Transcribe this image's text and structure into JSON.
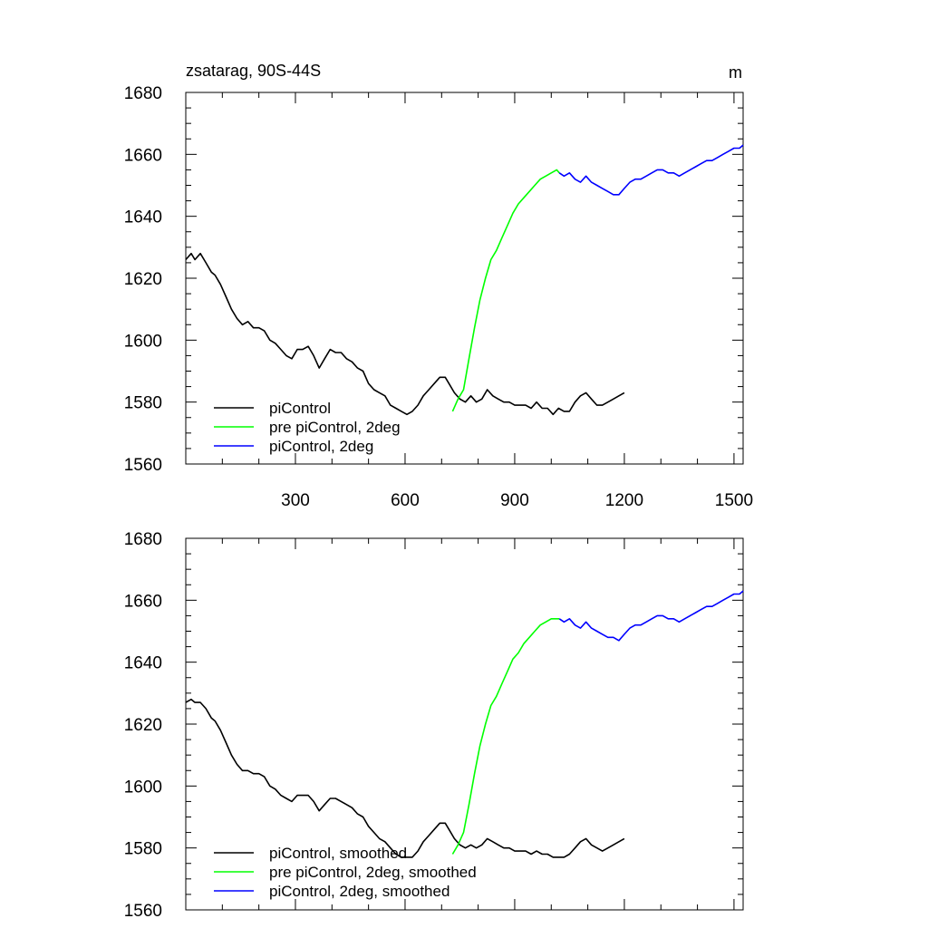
{
  "colors": {
    "black": "#000000",
    "green": "#00ff00",
    "blue": "#0000ff"
  },
  "chart_data": [
    {
      "type": "line",
      "title": "zsatarag, 90S-44S",
      "units": "m",
      "xlim": [
        0,
        1525
      ],
      "ylim": [
        1560,
        1680
      ],
      "xticks": [
        300,
        600,
        900,
        1200,
        1500
      ],
      "xtick_labels": [
        "300",
        "600",
        "900",
        "1200",
        "1500"
      ],
      "yticks": [
        1560,
        1580,
        1600,
        1620,
        1640,
        1660,
        1680
      ],
      "ytick_labels": [
        "1560",
        "1580",
        "1600",
        "1620",
        "1640",
        "1660",
        "1680"
      ],
      "legend_position": "bottom-left",
      "series": [
        {
          "name": "piControl",
          "color": "#000000",
          "x": [
            0,
            15,
            25,
            40,
            55,
            70,
            80,
            95,
            110,
            125,
            140,
            155,
            170,
            185,
            200,
            215,
            230,
            245,
            260,
            275,
            290,
            305,
            320,
            335,
            350,
            365,
            380,
            395,
            410,
            425,
            440,
            455,
            470,
            485,
            500,
            515,
            530,
            545,
            560,
            575,
            590,
            605,
            620,
            635,
            650,
            665,
            680,
            695,
            710,
            720,
            735,
            750,
            765,
            780,
            795,
            810,
            825,
            840,
            855,
            870,
            885,
            900,
            915,
            930,
            945,
            960,
            975,
            990,
            1005,
            1020,
            1035,
            1050,
            1065,
            1080,
            1095,
            1110,
            1125,
            1140,
            1155,
            1170,
            1185,
            1200
          ],
          "y": [
            1626,
            1628,
            1626,
            1628,
            1625,
            1622,
            1621,
            1618,
            1614,
            1610,
            1607,
            1605,
            1606,
            1604,
            1604,
            1603,
            1600,
            1599,
            1597,
            1595,
            1594,
            1597,
            1597,
            1598,
            1595,
            1591,
            1594,
            1597,
            1596,
            1596,
            1594,
            1593,
            1591,
            1590,
            1586,
            1584,
            1583,
            1582,
            1579,
            1578,
            1577,
            1576,
            1577,
            1579,
            1582,
            1584,
            1586,
            1588,
            1588,
            1586,
            1583,
            1581,
            1580,
            1582,
            1580,
            1581,
            1584,
            1582,
            1581,
            1580,
            1580,
            1579,
            1579,
            1579,
            1578,
            1580,
            1578,
            1578,
            1576,
            1578,
            1577,
            1577,
            1580,
            1582,
            1583,
            1581,
            1579,
            1579,
            1580,
            1581,
            1582,
            1583
          ]
        },
        {
          "name": "pre piControl, 2deg",
          "color": "#00ff00",
          "x": [
            730,
            745,
            760,
            775,
            790,
            805,
            820,
            835,
            850,
            865,
            880,
            895,
            910,
            925,
            940,
            955,
            970,
            985,
            1000,
            1015,
            1022
          ],
          "y": [
            1577,
            1581,
            1584,
            1594,
            1604,
            1613,
            1620,
            1626,
            1629,
            1633,
            1637,
            1641,
            1644,
            1646,
            1648,
            1650,
            1652,
            1653,
            1654,
            1655,
            1654
          ],
          "x_offset": 0
        },
        {
          "name": "piControl, 2deg",
          "color": "#0000ff",
          "x": [
            1022,
            1035,
            1050,
            1065,
            1080,
            1095,
            1110,
            1125,
            1140,
            1155,
            1170,
            1185,
            1200,
            1215,
            1230,
            1245,
            1260,
            1275,
            1290,
            1305,
            1320,
            1335,
            1350,
            1365,
            1380,
            1395,
            1410,
            1425,
            1440,
            1455,
            1470,
            1485,
            1500,
            1515,
            1525
          ],
          "y": [
            1654,
            1653,
            1654,
            1652,
            1651,
            1653,
            1651,
            1650,
            1649,
            1648,
            1647,
            1647,
            1649,
            1651,
            1652,
            1652,
            1653,
            1654,
            1655,
            1655,
            1654,
            1654,
            1653,
            1654,
            1655,
            1656,
            1657,
            1658,
            1658,
            1659,
            1660,
            1661,
            1662,
            1662,
            1663
          ]
        }
      ]
    },
    {
      "type": "line",
      "title": "",
      "xlim": [
        0,
        1525
      ],
      "ylim": [
        1560,
        1680
      ],
      "xticks": [
        300,
        600,
        900,
        1200,
        1500
      ],
      "yticks": [
        1560,
        1580,
        1600,
        1620,
        1640,
        1660,
        1680
      ],
      "ytick_labels": [
        "1560",
        "1580",
        "1600",
        "1620",
        "1640",
        "1660",
        "1680"
      ],
      "legend_position": "bottom-left",
      "series": [
        {
          "name": "piControl, smoothed",
          "color": "#000000",
          "x": [
            0,
            15,
            25,
            40,
            55,
            70,
            80,
            95,
            110,
            125,
            140,
            155,
            170,
            185,
            200,
            215,
            230,
            245,
            260,
            275,
            290,
            305,
            320,
            335,
            350,
            365,
            380,
            395,
            410,
            425,
            440,
            455,
            470,
            485,
            500,
            515,
            530,
            545,
            560,
            575,
            590,
            605,
            620,
            635,
            650,
            665,
            680,
            695,
            710,
            720,
            735,
            750,
            765,
            780,
            795,
            810,
            825,
            840,
            855,
            870,
            885,
            900,
            915,
            930,
            945,
            960,
            975,
            990,
            1005,
            1020,
            1035,
            1050,
            1065,
            1080,
            1095,
            1110,
            1125,
            1140,
            1155,
            1170,
            1185,
            1200
          ],
          "y": [
            1627,
            1628,
            1627,
            1627,
            1625,
            1622,
            1621,
            1618,
            1614,
            1610,
            1607,
            1605,
            1605,
            1604,
            1604,
            1603,
            1600,
            1599,
            1597,
            1596,
            1595,
            1597,
            1597,
            1597,
            1595,
            1592,
            1594,
            1596,
            1596,
            1595,
            1594,
            1593,
            1591,
            1590,
            1587,
            1585,
            1583,
            1582,
            1580,
            1578,
            1577,
            1577,
            1577,
            1579,
            1582,
            1584,
            1586,
            1588,
            1588,
            1586,
            1583,
            1581,
            1580,
            1581,
            1580,
            1581,
            1583,
            1582,
            1581,
            1580,
            1580,
            1579,
            1579,
            1579,
            1578,
            1579,
            1578,
            1578,
            1577,
            1577,
            1577,
            1578,
            1580,
            1582,
            1583,
            1581,
            1580,
            1579,
            1580,
            1581,
            1582,
            1583
          ]
        },
        {
          "name": "pre piControl, 2deg, smoothed",
          "color": "#00ff00",
          "x": [
            730,
            745,
            760,
            775,
            790,
            805,
            820,
            835,
            850,
            865,
            880,
            895,
            910,
            925,
            940,
            955,
            970,
            985,
            1000,
            1015,
            1022
          ],
          "y": [
            1578,
            1581,
            1585,
            1594,
            1604,
            1613,
            1620,
            1626,
            1629,
            1633,
            1637,
            1641,
            1643,
            1646,
            1648,
            1650,
            1652,
            1653,
            1654,
            1654,
            1654
          ]
        },
        {
          "name": "piControl, 2deg, smoothed",
          "color": "#0000ff",
          "x": [
            1022,
            1035,
            1050,
            1065,
            1080,
            1095,
            1110,
            1125,
            1140,
            1155,
            1170,
            1185,
            1200,
            1215,
            1230,
            1245,
            1260,
            1275,
            1290,
            1305,
            1320,
            1335,
            1350,
            1365,
            1380,
            1395,
            1410,
            1425,
            1440,
            1455,
            1470,
            1485,
            1500,
            1515,
            1525
          ],
          "y": [
            1654,
            1653,
            1654,
            1652,
            1651,
            1653,
            1651,
            1650,
            1649,
            1648,
            1648,
            1647,
            1649,
            1651,
            1652,
            1652,
            1653,
            1654,
            1655,
            1655,
            1654,
            1654,
            1653,
            1654,
            1655,
            1656,
            1657,
            1658,
            1658,
            1659,
            1660,
            1661,
            1662,
            1662,
            1663
          ]
        }
      ]
    }
  ]
}
